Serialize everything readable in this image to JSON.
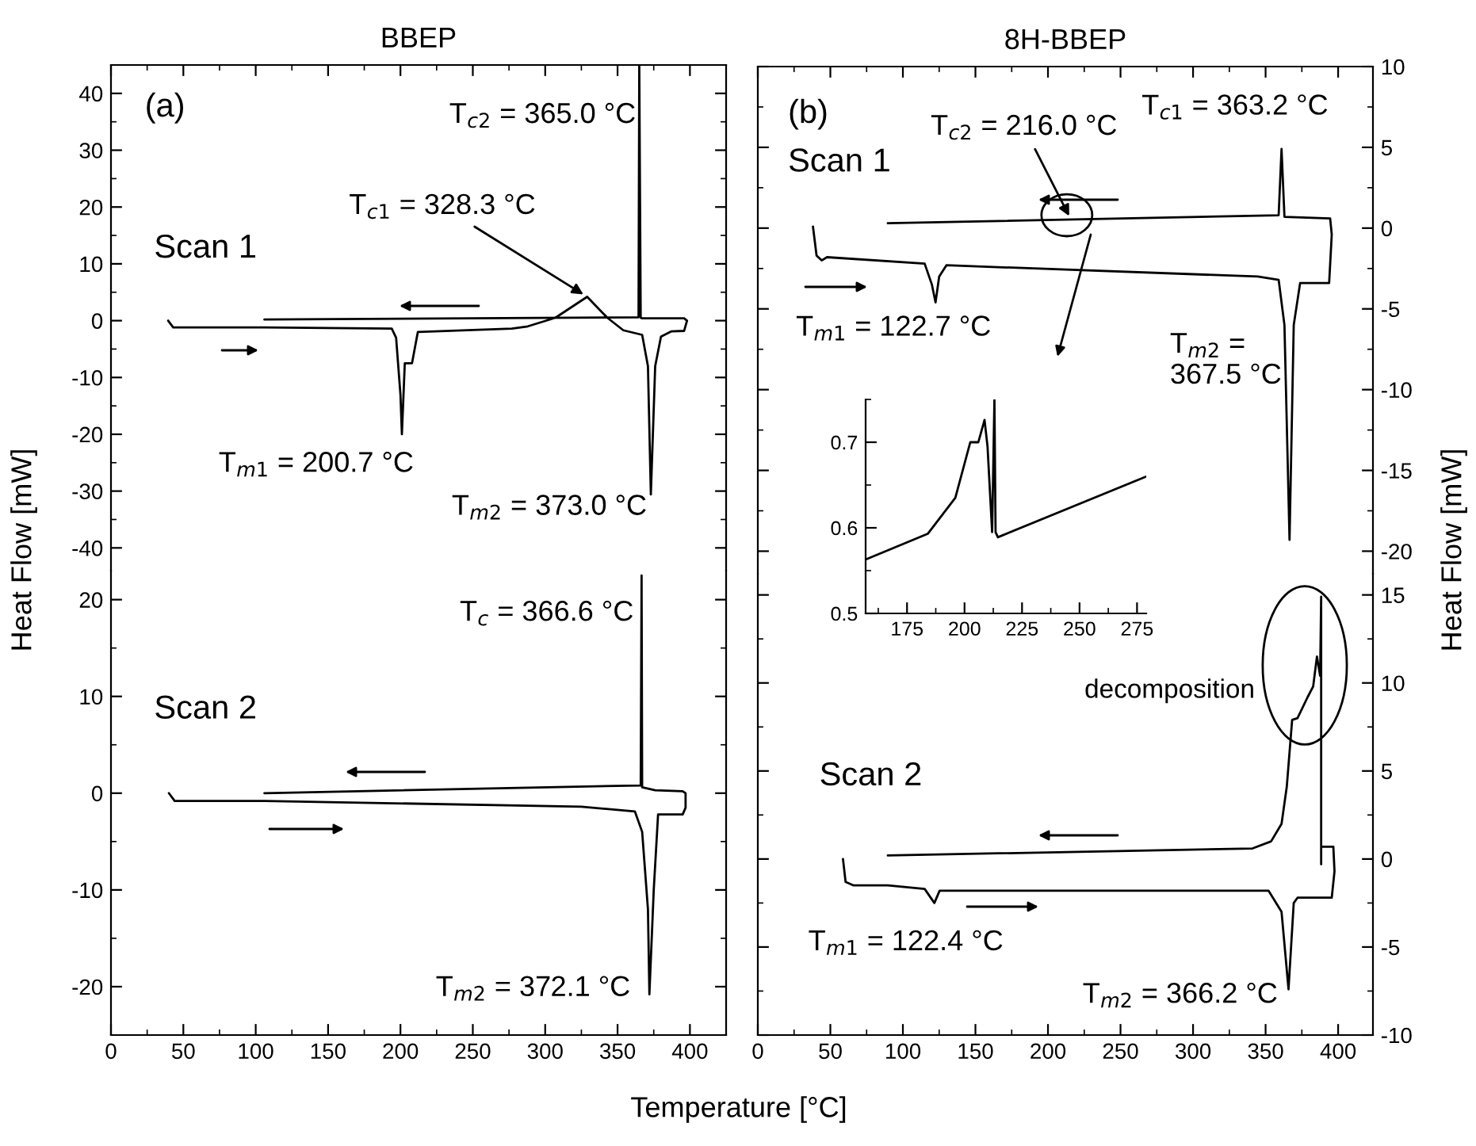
{
  "chart_data": [
    {
      "type": "line",
      "title": "BBEP",
      "ylabel": "Heat Flow [mW]",
      "xlim": [
        0,
        425
      ],
      "ylim": [
        -44,
        45
      ],
      "xticks": [
        0,
        50,
        100,
        150,
        200,
        250,
        300,
        350,
        400
      ],
      "yticks": [
        -40,
        -30,
        -20,
        -10,
        0,
        10,
        20,
        30,
        40
      ],
      "tick_labels": "y",
      "series": [
        {
          "color": "#000000",
          "x": [
            39.5,
            43,
            106,
            194,
            197,
            200,
            201,
            203,
            208,
            212,
            277,
            288,
            307,
            329,
            343,
            354,
            367,
            371,
            373,
            376,
            380,
            387,
            396,
            398,
            396,
            367,
            366,
            365,
            364.5,
            106
          ],
          "values": [
            0,
            -1.2,
            -1.2,
            -1.4,
            -3,
            -13,
            -20,
            -7.5,
            -7.5,
            -2,
            -1.4,
            -1,
            0.5,
            4.2,
            0.5,
            -1.7,
            -2.5,
            -8,
            -30.6,
            -8,
            -2.8,
            -1.9,
            -1.8,
            0,
            0.4,
            0.4,
            0.5,
            45,
            0.6,
            0.2
          ]
        }
      ],
      "annotations": [
        "(a)",
        "Scan 1",
        "T$_{c2}$ = 365.0 °C",
        {
          "text": "T$_{c1}$ = 328.3 °C",
          "x": 329,
          "y": 4.2
        },
        "T$_{m1}$ = 200.7 °C",
        "T$_{m2}$ = 373.0 °C"
      ]
    },
    {
      "type": "line",
      "xlabel": "Temperature [°C]",
      "xlim": [
        0,
        425
      ],
      "ylim": [
        -25,
        23
      ],
      "xticks": [
        0,
        50,
        100,
        150,
        200,
        250,
        300,
        350,
        400
      ],
      "yticks": [
        -20,
        -10,
        0,
        10,
        20
      ],
      "series": [
        {
          "color": "#000000",
          "x": [
            40,
            44,
            106,
            325,
            362,
            367,
            371,
            372,
            375,
            378,
            395,
            397,
            397,
            395,
            376,
            367,
            366.6,
            366,
            106
          ],
          "values": [
            0,
            -0.8,
            -0.8,
            -1.4,
            -1.9,
            -4,
            -12,
            -20.8,
            -10,
            -2.2,
            -2.2,
            -1.5,
            0,
            0.2,
            0.3,
            0.6,
            22.5,
            0.8,
            0
          ]
        }
      ],
      "annotations": [
        "T$_{c}$ = 366.6 °C",
        "Scan 2",
        "T$_{m2}$ = 372.1 °C"
      ]
    },
    {
      "type": "line",
      "title": "8H-BBEP",
      "ylabel": "Heat Flow [mW]",
      "xlim": [
        0,
        424
      ],
      "ylim": [
        -21.4,
        10
      ],
      "xticks": [
        0,
        50,
        100,
        150,
        200,
        250,
        300,
        350,
        400
      ],
      "yticks": [
        -20,
        -15,
        -10,
        -5,
        0,
        5,
        10
      ],
      "tick_labels": "y",
      "series": [
        {
          "color": "#000000",
          "x": [
            38,
            40.5,
            44,
            47.7,
            115,
            120,
            122.5,
            125,
            130,
            344.6,
            359,
            363,
            366.5,
            369.4,
            373.8,
            393.8,
            395.6,
            394.5,
            363,
            361,
            359,
            89.6
          ],
          "values": [
            0.1,
            -1.7,
            -2,
            -1.8,
            -2.2,
            -3.5,
            -4.6,
            -3,
            -2.3,
            -3,
            -3.2,
            -6,
            -19.3,
            -6,
            -3.4,
            -3.4,
            -0.4,
            0.6,
            0.7,
            4.9,
            0.8,
            0.3
          ]
        }
      ],
      "annotations": [
        "(b)",
        "Scan 1",
        {
          "text": "T$_{c2}$ = 216.0 °C",
          "x": 216,
          "y": 0.5
        },
        "T$_{c1}$ = 363.2 °C",
        "T$_{m1}$ = 122.7 °C",
        "T$_{m2}$ =\n367.5 °C"
      ]
    },
    {
      "type": "line",
      "xlim": [
        0,
        424
      ],
      "ylim": [
        -10,
        16.2
      ],
      "xticks": [
        0,
        50,
        100,
        150,
        200,
        250,
        300,
        350,
        400
      ],
      "yticks": [
        -10,
        -5,
        0,
        5,
        10,
        15
      ],
      "series": [
        {
          "color": "#000000",
          "x": [
            58.7,
            60.5,
            66,
            89.6,
            115,
            121.7,
            125.3,
            352,
            361,
            365.8,
            369.4,
            372,
            395.6,
            397.5,
            396.7,
            388.3,
            388.3,
            388.3,
            387.6,
            385.4,
            382.8,
            379,
            372,
            368.3,
            364.6,
            361,
            353.8,
            341,
            89.6
          ],
          "values": [
            0,
            -1.3,
            -1.5,
            -1.5,
            -1.7,
            -2.5,
            -1.8,
            -1.8,
            -3,
            -7.4,
            -2.5,
            -2.2,
            -2.2,
            -0.7,
            0.7,
            0.7,
            -0.3,
            14.9,
            10.4,
            11.5,
            9.8,
            9.2,
            8.0,
            7.9,
            4.1,
            2.0,
            1.0,
            0.6,
            0.2
          ]
        }
      ],
      "annotations": [
        "decomposition",
        "Scan 2",
        "T$_{m1}$ = 122.4 °C",
        "T$_{m2}$ = 366.2 °C"
      ]
    },
    {
      "type": "line",
      "xlim": [
        157,
        279
      ],
      "ylim": [
        0.5,
        0.75
      ],
      "xticks": [
        175,
        200,
        225,
        250,
        275
      ],
      "yticks": [
        0.5,
        0.6,
        0.7
      ],
      "series": [
        {
          "color": "#000000",
          "x": [
            157,
            184,
            196,
            202.5,
            206,
            208.7,
            210,
            212,
            213,
            213.5,
            214.5,
            279
          ],
          "values": [
            0.563,
            0.593,
            0.635,
            0.7,
            0.7,
            0.726,
            0.695,
            0.595,
            0.75,
            0.595,
            0.589,
            0.66
          ]
        }
      ]
    }
  ]
}
